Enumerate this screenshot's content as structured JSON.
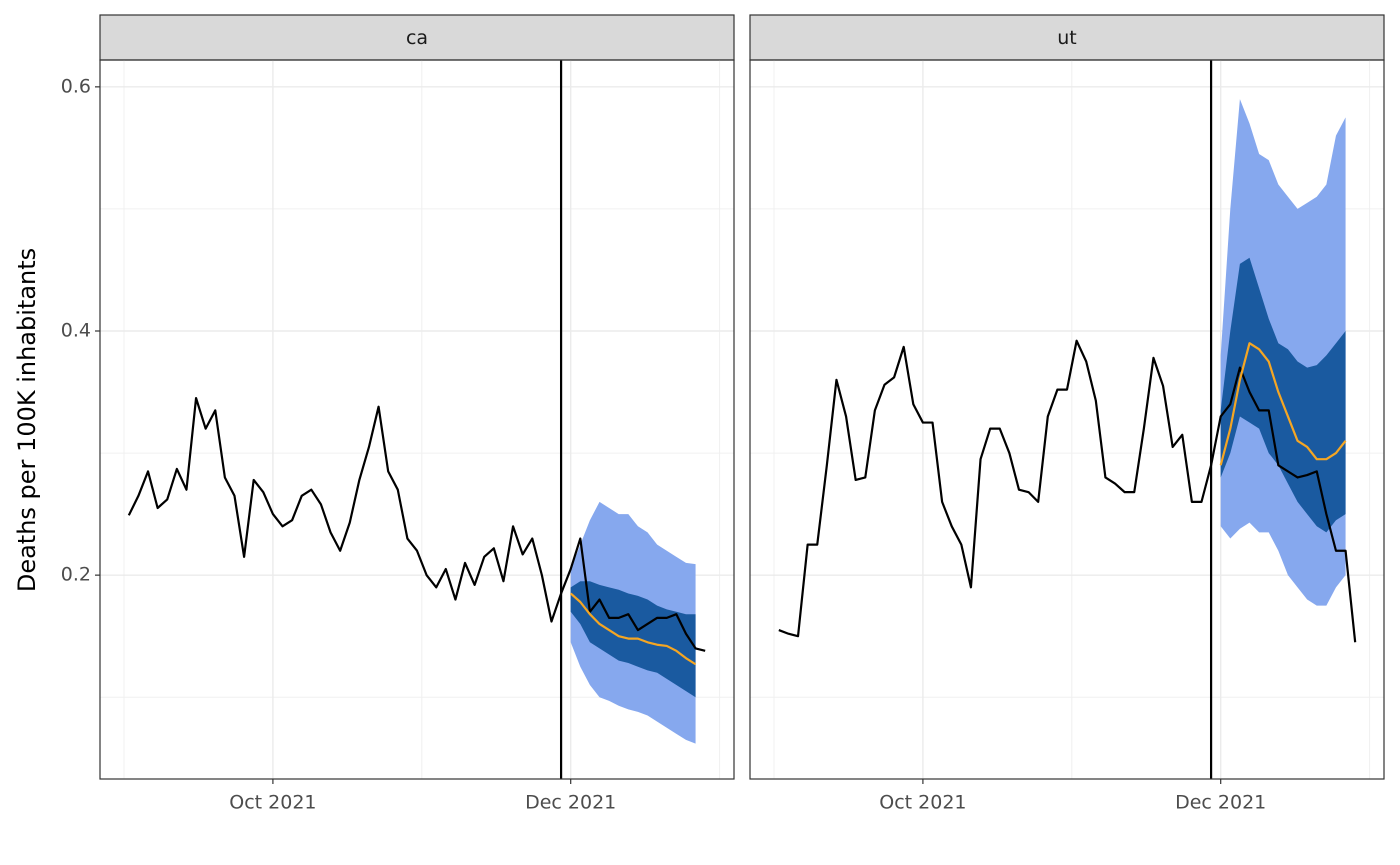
{
  "chart_data": [
    {
      "type": "line",
      "title": "ca",
      "ylabel": "Deaths per 100K inhabitants",
      "categories": [
        null,
        null,
        null,
        null,
        null,
        null,
        null,
        null,
        null,
        null,
        null,
        null,
        null,
        null,
        null,
        "Oct 2021",
        null,
        null,
        null,
        null,
        null,
        null,
        null,
        null,
        null,
        null,
        null,
        null,
        null,
        null,
        null,
        null,
        null,
        null,
        null,
        null,
        null,
        null,
        null,
        null,
        null,
        null,
        null,
        null,
        null,
        null,
        "Dec 2021",
        null,
        null,
        null,
        null,
        null,
        null,
        null,
        null,
        null,
        null,
        null,
        null,
        null,
        null
      ],
      "ylim": [
        0.033,
        0.622
      ],
      "yticks": [
        0.2,
        0.4,
        0.6
      ],
      "grid": true,
      "series": [
        {
          "type": "band",
          "color": "#86a8ee",
          "upper": [
            null,
            null,
            null,
            null,
            null,
            null,
            null,
            null,
            null,
            null,
            null,
            null,
            null,
            null,
            null,
            null,
            null,
            null,
            null,
            null,
            null,
            null,
            null,
            null,
            null,
            null,
            null,
            null,
            null,
            null,
            null,
            null,
            null,
            null,
            null,
            null,
            null,
            null,
            null,
            null,
            null,
            null,
            null,
            null,
            null,
            null,
            0.205,
            0.225,
            0.245,
            0.26,
            0.255,
            0.25,
            0.25,
            0.24,
            0.235,
            0.225,
            0.22,
            0.215,
            0.21,
            0.209,
            null
          ],
          "lower": [
            null,
            null,
            null,
            null,
            null,
            null,
            null,
            null,
            null,
            null,
            null,
            null,
            null,
            null,
            null,
            null,
            null,
            null,
            null,
            null,
            null,
            null,
            null,
            null,
            null,
            null,
            null,
            null,
            null,
            null,
            null,
            null,
            null,
            null,
            null,
            null,
            null,
            null,
            null,
            null,
            null,
            null,
            null,
            null,
            null,
            null,
            0.145,
            0.125,
            0.11,
            0.1,
            0.097,
            0.093,
            0.09,
            0.088,
            0.085,
            0.08,
            0.075,
            0.07,
            0.065,
            0.062,
            null
          ]
        },
        {
          "type": "band",
          "color": "#1a5aa0",
          "upper": [
            null,
            null,
            null,
            null,
            null,
            null,
            null,
            null,
            null,
            null,
            null,
            null,
            null,
            null,
            null,
            null,
            null,
            null,
            null,
            null,
            null,
            null,
            null,
            null,
            null,
            null,
            null,
            null,
            null,
            null,
            null,
            null,
            null,
            null,
            null,
            null,
            null,
            null,
            null,
            null,
            null,
            null,
            null,
            null,
            null,
            null,
            0.19,
            0.195,
            0.195,
            0.192,
            0.19,
            0.188,
            0.185,
            0.183,
            0.18,
            0.175,
            0.172,
            0.17,
            0.168,
            0.168,
            null
          ],
          "lower": [
            null,
            null,
            null,
            null,
            null,
            null,
            null,
            null,
            null,
            null,
            null,
            null,
            null,
            null,
            null,
            null,
            null,
            null,
            null,
            null,
            null,
            null,
            null,
            null,
            null,
            null,
            null,
            null,
            null,
            null,
            null,
            null,
            null,
            null,
            null,
            null,
            null,
            null,
            null,
            null,
            null,
            null,
            null,
            null,
            null,
            null,
            0.17,
            0.16,
            0.145,
            0.14,
            0.135,
            0.13,
            0.128,
            0.125,
            0.122,
            0.12,
            0.115,
            0.11,
            0.105,
            0.1,
            null
          ]
        },
        {
          "color": "#000000",
          "values": [
            0.249,
            0.265,
            0.285,
            0.255,
            0.262,
            0.287,
            0.27,
            0.345,
            0.32,
            0.335,
            0.28,
            0.265,
            0.215,
            0.278,
            0.268,
            0.25,
            0.24,
            0.245,
            0.265,
            0.27,
            0.258,
            0.235,
            0.22,
            0.243,
            0.278,
            0.305,
            0.338,
            0.285,
            0.27,
            0.23,
            0.22,
            0.2,
            0.19,
            0.205,
            0.18,
            0.21,
            0.192,
            0.215,
            0.222,
            0.195,
            0.24,
            0.217,
            0.23,
            0.2,
            0.162,
            0.185,
            0.205,
            0.23,
            0.17,
            0.18,
            0.165,
            0.165,
            0.168,
            0.155,
            0.16,
            0.165,
            0.165,
            0.168,
            0.152,
            0.14,
            0.138
          ]
        },
        {
          "color": "#f5a623",
          "values": [
            null,
            null,
            null,
            null,
            null,
            null,
            null,
            null,
            null,
            null,
            null,
            null,
            null,
            null,
            null,
            null,
            null,
            null,
            null,
            null,
            null,
            null,
            null,
            null,
            null,
            null,
            null,
            null,
            null,
            null,
            null,
            null,
            null,
            null,
            null,
            null,
            null,
            null,
            null,
            null,
            null,
            null,
            null,
            null,
            null,
            null,
            0.185,
            0.178,
            0.168,
            0.16,
            0.155,
            0.15,
            0.148,
            0.148,
            0.145,
            0.143,
            0.142,
            0.138,
            0.132,
            0.127,
            null
          ]
        }
      ]
    },
    {
      "type": "line",
      "title": "ut",
      "categories": [
        null,
        null,
        null,
        null,
        null,
        null,
        null,
        null,
        null,
        null,
        null,
        null,
        null,
        null,
        null,
        "Oct 2021",
        null,
        null,
        null,
        null,
        null,
        null,
        null,
        null,
        null,
        null,
        null,
        null,
        null,
        null,
        null,
        null,
        null,
        null,
        null,
        null,
        null,
        null,
        null,
        null,
        null,
        null,
        null,
        null,
        null,
        null,
        "Dec 2021",
        null,
        null,
        null,
        null,
        null,
        null,
        null,
        null,
        null,
        null,
        null,
        null,
        null,
        null
      ],
      "ylim": [
        0.033,
        0.622
      ],
      "yticks": [
        0.2,
        0.4,
        0.6
      ],
      "grid": true,
      "series": [
        {
          "type": "band",
          "color": "#86a8ee",
          "upper": [
            null,
            null,
            null,
            null,
            null,
            null,
            null,
            null,
            null,
            null,
            null,
            null,
            null,
            null,
            null,
            null,
            null,
            null,
            null,
            null,
            null,
            null,
            null,
            null,
            null,
            null,
            null,
            null,
            null,
            null,
            null,
            null,
            null,
            null,
            null,
            null,
            null,
            null,
            null,
            null,
            null,
            null,
            null,
            null,
            null,
            null,
            0.38,
            0.5,
            0.59,
            0.57,
            0.545,
            0.54,
            0.52,
            0.51,
            0.5,
            0.505,
            0.51,
            0.52,
            0.56,
            0.575,
            null
          ],
          "lower": [
            null,
            null,
            null,
            null,
            null,
            null,
            null,
            null,
            null,
            null,
            null,
            null,
            null,
            null,
            null,
            null,
            null,
            null,
            null,
            null,
            null,
            null,
            null,
            null,
            null,
            null,
            null,
            null,
            null,
            null,
            null,
            null,
            null,
            null,
            null,
            null,
            null,
            null,
            null,
            null,
            null,
            null,
            null,
            null,
            null,
            null,
            0.24,
            0.23,
            0.238,
            0.243,
            0.235,
            0.235,
            0.22,
            0.2,
            0.19,
            0.18,
            0.175,
            0.175,
            0.19,
            0.2,
            null
          ]
        },
        {
          "type": "band",
          "color": "#1a5aa0",
          "upper": [
            null,
            null,
            null,
            null,
            null,
            null,
            null,
            null,
            null,
            null,
            null,
            null,
            null,
            null,
            null,
            null,
            null,
            null,
            null,
            null,
            null,
            null,
            null,
            null,
            null,
            null,
            null,
            null,
            null,
            null,
            null,
            null,
            null,
            null,
            null,
            null,
            null,
            null,
            null,
            null,
            null,
            null,
            null,
            null,
            null,
            null,
            0.335,
            0.4,
            0.455,
            0.46,
            0.435,
            0.41,
            0.39,
            0.385,
            0.375,
            0.37,
            0.372,
            0.38,
            0.39,
            0.4,
            null
          ],
          "lower": [
            null,
            null,
            null,
            null,
            null,
            null,
            null,
            null,
            null,
            null,
            null,
            null,
            null,
            null,
            null,
            null,
            null,
            null,
            null,
            null,
            null,
            null,
            null,
            null,
            null,
            null,
            null,
            null,
            null,
            null,
            null,
            null,
            null,
            null,
            null,
            null,
            null,
            null,
            null,
            null,
            null,
            null,
            null,
            null,
            null,
            null,
            0.28,
            0.3,
            0.33,
            0.325,
            0.32,
            0.3,
            0.29,
            0.275,
            0.26,
            0.25,
            0.24,
            0.235,
            0.245,
            0.25,
            null
          ]
        },
        {
          "color": "#000000",
          "values": [
            0.155,
            0.152,
            0.15,
            0.225,
            0.225,
            0.29,
            0.36,
            0.33,
            0.278,
            0.28,
            0.335,
            0.356,
            0.362,
            0.387,
            0.34,
            0.325,
            0.325,
            0.26,
            0.24,
            0.225,
            0.19,
            0.295,
            0.32,
            0.32,
            0.3,
            0.27,
            0.268,
            0.26,
            0.33,
            0.352,
            0.352,
            0.392,
            0.375,
            0.343,
            0.28,
            0.275,
            0.268,
            0.268,
            0.32,
            0.378,
            0.355,
            0.305,
            0.315,
            0.26,
            0.26,
            0.29,
            0.33,
            0.34,
            0.37,
            0.35,
            0.335,
            0.335,
            0.29,
            0.285,
            0.28,
            0.282,
            0.285,
            0.25,
            0.22,
            0.22,
            0.145
          ]
        },
        {
          "color": "#f5a623",
          "values": [
            null,
            null,
            null,
            null,
            null,
            null,
            null,
            null,
            null,
            null,
            null,
            null,
            null,
            null,
            null,
            null,
            null,
            null,
            null,
            null,
            null,
            null,
            null,
            null,
            null,
            null,
            null,
            null,
            null,
            null,
            null,
            null,
            null,
            null,
            null,
            null,
            null,
            null,
            null,
            null,
            null,
            null,
            null,
            null,
            null,
            null,
            0.29,
            0.32,
            0.36,
            0.39,
            0.385,
            0.375,
            0.35,
            0.33,
            0.31,
            0.305,
            0.295,
            0.295,
            0.3,
            0.31,
            null
          ]
        }
      ]
    }
  ]
}
